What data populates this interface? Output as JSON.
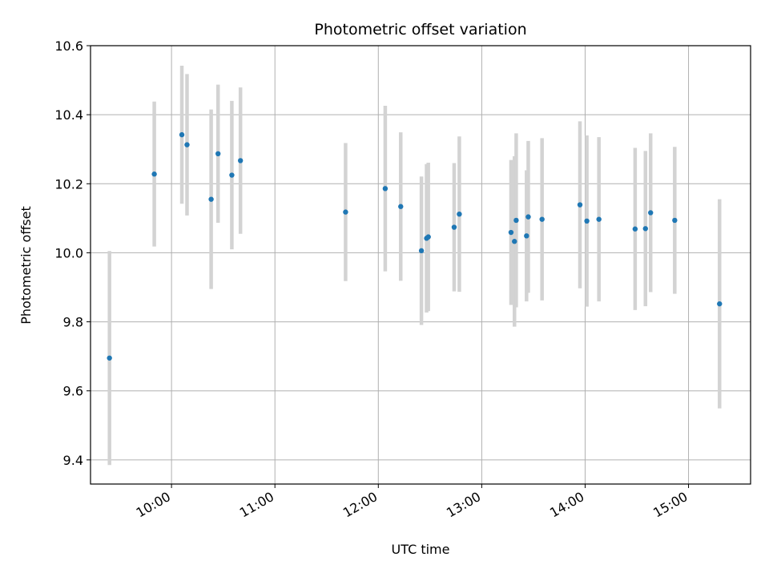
{
  "chart_data": {
    "type": "scatter",
    "title": "Photometric offset variation",
    "xlabel": "UTC time",
    "ylabel": "Photometric offset",
    "x_ticks": [
      "10:00",
      "11:00",
      "12:00",
      "13:00",
      "14:00",
      "15:00"
    ],
    "y_ticks": [
      "9.4",
      "9.6",
      "9.8",
      "10.0",
      "10.2",
      "10.4",
      "10.6"
    ],
    "xlim": [
      "09:13",
      "15:36"
    ],
    "ylim": [
      9.33,
      10.6
    ],
    "grid": true,
    "errorbar_color": "#d3d3d3",
    "point_color": "#1f77b4",
    "points": [
      {
        "x": "09:24",
        "y": 9.695,
        "err": 0.31
      },
      {
        "x": "09:50",
        "y": 10.228,
        "err": 0.21
      },
      {
        "x": "10:06",
        "y": 10.342,
        "err": 0.2
      },
      {
        "x": "10:09",
        "y": 10.313,
        "err": 0.205
      },
      {
        "x": "10:23",
        "y": 10.155,
        "err": 0.26
      },
      {
        "x": "10:27",
        "y": 10.287,
        "err": 0.2
      },
      {
        "x": "10:35",
        "y": 10.225,
        "err": 0.215
      },
      {
        "x": "10:40",
        "y": 10.267,
        "err": 0.212
      },
      {
        "x": "11:41",
        "y": 10.118,
        "err": 0.2
      },
      {
        "x": "12:04",
        "y": 10.186,
        "err": 0.24
      },
      {
        "x": "12:13",
        "y": 10.134,
        "err": 0.215
      },
      {
        "x": "12:25",
        "y": 10.006,
        "err": 0.215
      },
      {
        "x": "12:28",
        "y": 10.042,
        "err": 0.215
      },
      {
        "x": "12:29",
        "y": 10.046,
        "err": 0.215
      },
      {
        "x": "12:44",
        "y": 10.074,
        "err": 0.186
      },
      {
        "x": "12:47",
        "y": 10.112,
        "err": 0.225
      },
      {
        "x": "13:17",
        "y": 10.059,
        "err": 0.21
      },
      {
        "x": "13:19",
        "y": 10.033,
        "err": 0.247
      },
      {
        "x": "13:20",
        "y": 10.094,
        "err": 0.252
      },
      {
        "x": "13:26",
        "y": 10.049,
        "err": 0.19
      },
      {
        "x": "13:27",
        "y": 10.104,
        "err": 0.22
      },
      {
        "x": "13:35",
        "y": 10.097,
        "err": 0.235
      },
      {
        "x": "13:57",
        "y": 10.139,
        "err": 0.242
      },
      {
        "x": "14:01",
        "y": 10.092,
        "err": 0.248
      },
      {
        "x": "14:08",
        "y": 10.097,
        "err": 0.238
      },
      {
        "x": "14:29",
        "y": 10.069,
        "err": 0.235
      },
      {
        "x": "14:35",
        "y": 10.07,
        "err": 0.225
      },
      {
        "x": "14:38",
        "y": 10.116,
        "err": 0.23
      },
      {
        "x": "14:52",
        "y": 10.094,
        "err": 0.213
      },
      {
        "x": "15:18",
        "y": 9.852,
        "err": 0.303
      }
    ]
  }
}
